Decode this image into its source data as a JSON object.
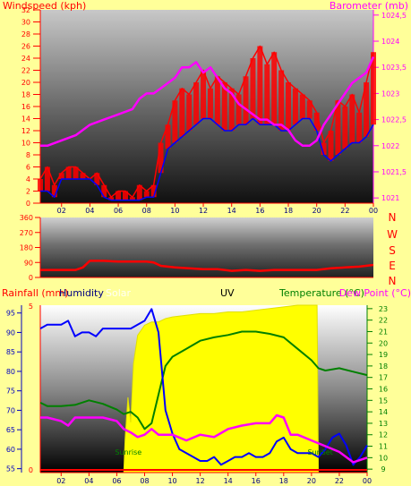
{
  "colors": {
    "background": "#ffff99",
    "wind": "#ff0000",
    "wind_avg": "#0000ff",
    "barometer": "#ff00ff",
    "direction": "#ff0000",
    "rainfall": "#ff0000",
    "humidity": "#0000ff",
    "solar": "#ffff00",
    "temperature": "#008000",
    "dew_point": "#ff00ff",
    "axis_text": "#ff0000",
    "left_axis_text_rain": "#0000ff"
  },
  "chart_data": [
    {
      "type": "line",
      "panel": "wind_barometer",
      "title_left": "Windspeed (kph)",
      "title_right": "Barometer (mb)",
      "header_faint": "",
      "x_ticks": [
        "02",
        "04",
        "06",
        "08",
        "10",
        "12",
        "14",
        "16",
        "18",
        "20",
        "22",
        "00"
      ],
      "y_left": {
        "label": "Windspeed (kph)",
        "ylim": [
          0,
          32
        ],
        "ticks": [
          0,
          2,
          4,
          6,
          8,
          10,
          12,
          14,
          16,
          18,
          20,
          22,
          24,
          26,
          28,
          30,
          32
        ]
      },
      "y_right": {
        "label": "Barometer (mb)",
        "ylim": [
          1020.9,
          1024.6
        ],
        "ticks": [
          "1021",
          "1021,5",
          "1022",
          "1022,5",
          "1023",
          "1023,5",
          "1024",
          "1024,5"
        ]
      },
      "xlim": [
        0.5,
        24
      ],
      "series": [
        {
          "name": "Windspeed (kph)",
          "axis": "left",
          "x": [
            0.5,
            1,
            1.5,
            2,
            2.5,
            3,
            3.5,
            4,
            4.5,
            5,
            5.5,
            6,
            6.5,
            7,
            7.5,
            8,
            8.5,
            9,
            9.5,
            10,
            10.5,
            11,
            11.5,
            12,
            12.5,
            13,
            13.5,
            14,
            14.5,
            15,
            15.5,
            16,
            16.5,
            17,
            17.5,
            18,
            18.5,
            19,
            19.5,
            20,
            20.5,
            21,
            21.5,
            22,
            22.5,
            23,
            23.5,
            24
          ],
          "values": [
            4,
            6,
            3,
            5,
            6,
            6,
            5,
            4,
            5,
            3,
            1,
            2,
            2,
            1,
            3,
            2,
            3,
            10,
            13,
            17,
            19,
            18,
            20,
            22,
            19,
            21,
            20,
            19,
            18,
            21,
            24,
            26,
            23,
            25,
            22,
            20,
            19,
            18,
            17,
            15,
            10,
            12,
            17,
            16,
            18,
            15,
            20,
            25
          ]
        },
        {
          "name": "Wind average",
          "axis": "left",
          "x": [
            0.5,
            1,
            1.5,
            2,
            2.5,
            3,
            3.5,
            4,
            4.5,
            5,
            5.5,
            6,
            6.5,
            7,
            7.5,
            8,
            8.5,
            9,
            9.5,
            10,
            10.5,
            11,
            11.5,
            12,
            12.5,
            13,
            13.5,
            14,
            14.5,
            15,
            15.5,
            16,
            16.5,
            17,
            17.5,
            18,
            18.5,
            19,
            19.5,
            20,
            20.5,
            21,
            21.5,
            22,
            22.5,
            23,
            23.5,
            24
          ],
          "values": [
            2,
            2,
            1,
            4,
            4,
            4,
            4,
            4,
            3,
            1,
            0.5,
            0.5,
            0.5,
            0.5,
            0.5,
            1,
            1,
            5,
            9,
            10,
            11,
            12,
            13,
            14,
            14,
            13,
            12,
            12,
            13,
            13,
            14,
            13,
            13,
            13,
            12,
            12,
            13,
            14,
            14,
            12,
            8,
            7,
            8,
            9,
            10,
            10,
            11,
            13
          ]
        },
        {
          "name": "Barometer (mb)",
          "axis": "right",
          "x": [
            0.5,
            1,
            2,
            3,
            4,
            5,
            6,
            7,
            7.5,
            8,
            8.5,
            9,
            9.5,
            10,
            10.5,
            11,
            11.5,
            12,
            12.5,
            13,
            13.5,
            14,
            14.5,
            15,
            15.5,
            16,
            16.5,
            17,
            17.5,
            18,
            18.5,
            19,
            19.5,
            20,
            20.5,
            21,
            21.5,
            22,
            22.5,
            23,
            23.5,
            24
          ],
          "values": [
            1022.0,
            1022.0,
            1022.1,
            1022.2,
            1022.4,
            1022.5,
            1022.6,
            1022.7,
            1022.9,
            1023.0,
            1023.0,
            1023.1,
            1023.2,
            1023.3,
            1023.5,
            1023.5,
            1023.6,
            1023.4,
            1023.5,
            1023.3,
            1023.1,
            1023.0,
            1022.8,
            1022.7,
            1022.6,
            1022.5,
            1022.5,
            1022.4,
            1022.4,
            1022.3,
            1022.1,
            1022.0,
            1022.0,
            1022.1,
            1022.4,
            1022.6,
            1022.8,
            1023.0,
            1023.2,
            1023.3,
            1023.4,
            1023.7
          ]
        }
      ]
    },
    {
      "type": "line",
      "panel": "direction",
      "y_left": {
        "ylim": [
          0,
          360
        ],
        "ticks": [
          0,
          90,
          180,
          270,
          360
        ]
      },
      "compass_labels": [
        "N",
        "W",
        "S",
        "E",
        "N"
      ],
      "xlim": [
        0.5,
        24
      ],
      "series": [
        {
          "name": "Wind direction",
          "x": [
            0.5,
            1,
            2,
            3,
            3.5,
            4,
            5,
            6,
            7,
            8,
            8.5,
            9,
            10,
            11,
            12,
            13,
            14,
            15,
            16,
            17,
            18,
            19,
            20,
            21,
            22,
            23,
            24
          ],
          "values": [
            45,
            45,
            45,
            45,
            60,
            100,
            100,
            95,
            95,
            95,
            90,
            70,
            60,
            55,
            50,
            50,
            40,
            45,
            40,
            45,
            45,
            45,
            45,
            55,
            60,
            65,
            75
          ]
        }
      ]
    },
    {
      "type": "line",
      "panel": "rain_humidity_temp",
      "legend": [
        "Rainfall (mm)",
        "Humidity",
        "Solar",
        "UV",
        "Temperature (°C)",
        "Dew Point (°C)"
      ],
      "y_left_humidity": {
        "ylim": [
          54,
          97
        ],
        "ticks": [
          55,
          60,
          65,
          70,
          75,
          80,
          85,
          90,
          95
        ]
      },
      "y_left_rain": {
        "ylim": [
          0,
          5
        ],
        "ticks": [
          0,
          5
        ]
      },
      "y_right_temp": {
        "ylim": [
          8.7,
          23.3
        ],
        "ticks": [
          9,
          10,
          11,
          12,
          13,
          14,
          15,
          16,
          17,
          18,
          19,
          20,
          21,
          22,
          23
        ]
      },
      "x_ticks": [
        "02",
        "04",
        "06",
        "08",
        "10",
        "12",
        "14",
        "16",
        "18",
        "20",
        "22",
        "00"
      ],
      "xlim": [
        0.5,
        24
      ],
      "annotations": [
        {
          "text": "Sunrise",
          "x": 6.7
        },
        {
          "text": "SunSet",
          "x": 20.5
        }
      ],
      "solar": {
        "x": [
          6.5,
          6.6,
          6.8,
          7.0,
          7.2,
          7.5,
          8,
          8.5,
          9,
          9.5,
          10,
          11,
          12,
          13,
          14,
          15,
          16,
          17,
          18,
          19,
          20,
          20.4,
          20.5
        ],
        "values": [
          0,
          0.2,
          0.45,
          0.3,
          0.65,
          0.82,
          0.88,
          0.9,
          0.9,
          0.92,
          0.93,
          0.94,
          0.95,
          0.95,
          0.96,
          0.96,
          0.97,
          0.98,
          0.99,
          1.0,
          1.0,
          1.0,
          0
        ]
      },
      "series": [
        {
          "name": "Rainfall (mm)",
          "axis": "rain",
          "x": [
            0.5,
            24
          ],
          "values": [
            0,
            0
          ]
        },
        {
          "name": "Humidity",
          "axis": "humidity",
          "x": [
            0.5,
            1,
            1.5,
            2,
            2.5,
            3,
            3.5,
            4,
            4.5,
            5,
            5.5,
            6,
            6.5,
            7,
            7.5,
            8,
            8.5,
            9,
            9.5,
            10,
            10.5,
            11,
            11.5,
            12,
            12.5,
            13,
            13.5,
            14,
            14.5,
            15,
            15.5,
            16,
            16.5,
            17,
            17.5,
            18,
            18.5,
            19,
            19.5,
            20,
            20.5,
            21,
            21.5,
            22,
            22.5,
            23,
            23.5,
            24
          ],
          "values": [
            91,
            92,
            92,
            92,
            93,
            89,
            90,
            90,
            89,
            91,
            91,
            91,
            91,
            91,
            92,
            93,
            96,
            90,
            70,
            64,
            60,
            59,
            58,
            57,
            57,
            58,
            56,
            57,
            58,
            58,
            59,
            58,
            58,
            59,
            62,
            63,
            60,
            59,
            59,
            59,
            58,
            60,
            63,
            64,
            61,
            56,
            58,
            61
          ]
        },
        {
          "name": "Temperature (°C)",
          "axis": "temp",
          "x": [
            0.5,
            1,
            2,
            3,
            4,
            5,
            6,
            6.5,
            7,
            7.5,
            8,
            8.5,
            9,
            9.5,
            10,
            11,
            12,
            13,
            14,
            15,
            16,
            17,
            18,
            19,
            20,
            20.5,
            21,
            22,
            23,
            24
          ],
          "values": [
            14.8,
            14.5,
            14.5,
            14.6,
            15.0,
            14.7,
            14.2,
            13.8,
            14.0,
            13.5,
            12.5,
            13.0,
            15.5,
            18.0,
            18.8,
            19.5,
            20.2,
            20.5,
            20.7,
            21.0,
            21.0,
            20.8,
            20.5,
            19.5,
            18.5,
            17.8,
            17.6,
            17.8,
            17.5,
            17.2
          ]
        },
        {
          "name": "Dew Point (°C)",
          "axis": "temp",
          "x": [
            0.5,
            1,
            2,
            2.5,
            3,
            4,
            5,
            6,
            6.5,
            7,
            7.5,
            8,
            8.5,
            9,
            10,
            11,
            12,
            13,
            14,
            15,
            16,
            17,
            17.5,
            18,
            18.5,
            19,
            20,
            21,
            22,
            23,
            23.5,
            24
          ],
          "values": [
            13.5,
            13.5,
            13.2,
            12.8,
            13.5,
            13.5,
            13.5,
            13.2,
            12.5,
            12.2,
            11.8,
            12.0,
            12.5,
            12.0,
            12.0,
            11.5,
            12.0,
            11.8,
            12.5,
            12.8,
            13.0,
            13.0,
            13.7,
            13.5,
            12.0,
            12.0,
            11.5,
            11.0,
            10.5,
            9.6,
            9.8,
            10.0
          ]
        }
      ]
    }
  ]
}
